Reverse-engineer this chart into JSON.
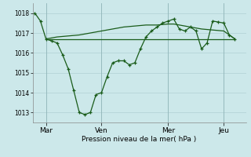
{
  "title": "Pression niveau de la mer( hPa )",
  "bg_color": "#cce8ea",
  "grid_color": "#b0d0d4",
  "line_color": "#1a5c1a",
  "ylim": [
    1012.5,
    1018.5
  ],
  "yticks": [
    1013,
    1014,
    1015,
    1016,
    1017,
    1018
  ],
  "xlim": [
    -0.1,
    9.5
  ],
  "xtick_positions": [
    0.5,
    3.0,
    6.0,
    8.5
  ],
  "xtick_labels": [
    "Mar",
    "Ven",
    "Mer",
    "Jeu"
  ],
  "vline_positions": [
    0.5,
    3.0,
    6.0,
    8.5
  ],
  "line1_x": [
    0,
    0.25,
    0.5,
    0.75,
    1.0,
    1.25,
    1.5,
    1.75,
    2.0,
    2.25,
    2.5,
    2.75,
    3.0,
    3.25,
    3.5,
    3.75,
    4.0,
    4.25,
    4.5,
    4.75,
    5.0,
    5.25,
    5.5,
    5.75,
    6.0,
    6.25,
    6.5,
    6.75,
    7.0,
    7.25,
    7.5,
    7.75,
    8.0,
    8.25,
    8.5,
    8.75,
    9.0
  ],
  "line1_y": [
    1018.0,
    1017.6,
    1016.7,
    1016.6,
    1016.5,
    1015.9,
    1015.2,
    1014.1,
    1013.0,
    1012.9,
    1013.0,
    1013.9,
    1014.0,
    1014.8,
    1015.5,
    1015.6,
    1015.6,
    1015.4,
    1015.5,
    1016.2,
    1016.8,
    1017.1,
    1017.3,
    1017.5,
    1017.6,
    1017.7,
    1017.2,
    1017.1,
    1017.3,
    1017.1,
    1016.2,
    1016.5,
    1017.6,
    1017.55,
    1017.5,
    1016.9,
    1016.7
  ],
  "line2_x": [
    0.5,
    9.0
  ],
  "line2_y": [
    1016.7,
    1016.7
  ],
  "line3_x": [
    0.5,
    0.75,
    1.0,
    1.5,
    2.0,
    2.5,
    3.0,
    3.5,
    4.0,
    4.5,
    5.0,
    5.5,
    6.0,
    6.25,
    6.5,
    6.75,
    7.0,
    7.5,
    8.0,
    8.5,
    9.0
  ],
  "line3_y": [
    1016.7,
    1016.75,
    1016.8,
    1016.85,
    1016.9,
    1017.0,
    1017.1,
    1017.2,
    1017.3,
    1017.35,
    1017.4,
    1017.4,
    1017.45,
    1017.45,
    1017.4,
    1017.35,
    1017.3,
    1017.2,
    1017.15,
    1017.1,
    1016.7
  ]
}
